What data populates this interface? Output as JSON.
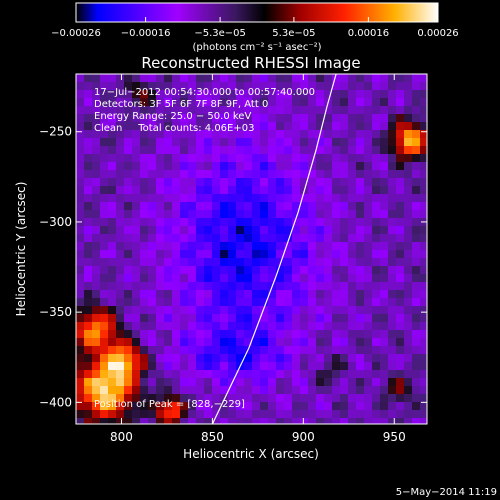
{
  "chart_data": {
    "type": "heatmap",
    "title": "Reconstructed RHESSI Image",
    "xlabel": "Heliocentric X (arcsec)",
    "ylabel": "Heliocentric Y (arcsec)",
    "xlim": [
      775,
      968
    ],
    "ylim": [
      -412,
      -218
    ],
    "x_ticks": [
      800,
      850,
      900,
      950
    ],
    "y_ticks": [
      -400,
      -350,
      -300,
      -250
    ],
    "x_tick_labels": [
      "800",
      "850",
      "900",
      "950"
    ],
    "y_tick_labels": [
      "−400",
      "−350",
      "−300",
      "−250"
    ],
    "colorbar": {
      "min": -0.00026,
      "max": 0.00026,
      "ticks": [
        -0.00026,
        -0.00016,
        -5.3e-05,
        5.3e-05,
        0.00016,
        0.00026
      ],
      "tick_labels": [
        "−0.00026",
        "−0.00016",
        "−5.3e−05",
        "5.3e−05",
        "0.00016",
        "0.00026"
      ],
      "units": "(photons cm⁻² s⁻¹ asec⁻²)",
      "colormap": [
        "#000000",
        "#0000ff",
        "#a000ff",
        "#5a2080",
        "#000000",
        "#a00000",
        "#ff2000",
        "#ffb000",
        "#ffffff"
      ]
    },
    "annotations": [
      "17−Jul−2012 00:54:30.000 to 00:57:40.000",
      "Detectors: 3F 5F 6F 7F 8F 9F, Att 0",
      "Energy Range: 25.0 − 50.0 keV",
      "Clean     Total counts: 4.06E+03",
      "Position of Peak = [828,−229]"
    ],
    "limb_curve": [
      [
        850,
        -412
      ],
      [
        870,
        -370
      ],
      [
        885,
        -330
      ],
      [
        897,
        -295
      ],
      [
        907,
        -260
      ],
      [
        913,
        -236
      ],
      [
        918,
        -218
      ]
    ],
    "grid": false,
    "legend": "none"
  },
  "footer": {
    "date": "5−May−2014 11:19"
  }
}
